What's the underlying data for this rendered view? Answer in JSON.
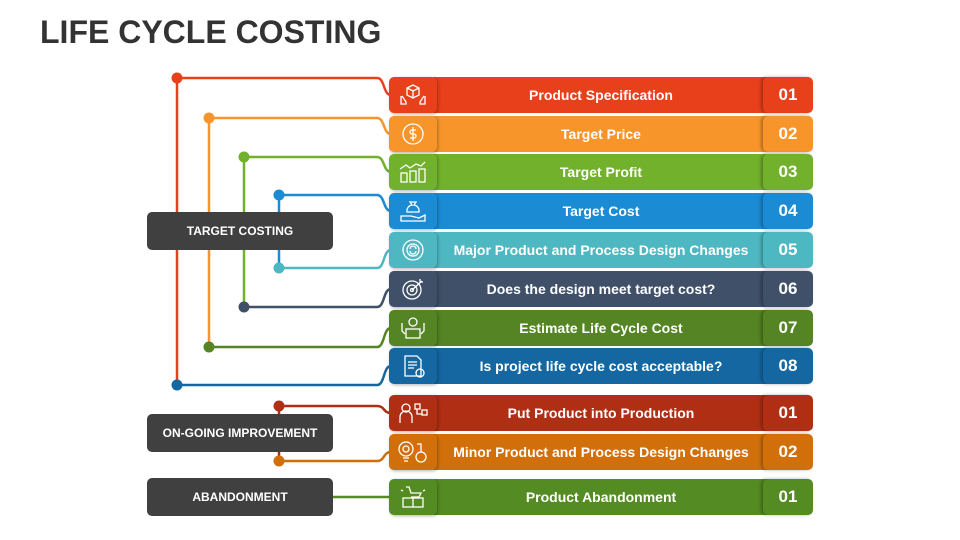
{
  "title": "LIFE CYCLE COSTING",
  "groups": [
    {
      "label": "TARGET COSTING"
    },
    {
      "label": "ON-GOING IMPROVEMENT"
    },
    {
      "label": "ABANDONMENT"
    }
  ],
  "rows": [
    {
      "label": "Product Specification",
      "num": "01",
      "color": "#E8401A",
      "icon": "box-in-hands-icon"
    },
    {
      "label": "Target Price",
      "num": "02",
      "color": "#F7952A",
      "icon": "dollar-coin-icon"
    },
    {
      "label": "Target Profit",
      "num": "03",
      "color": "#72B12B",
      "icon": "bar-chart-growth-icon"
    },
    {
      "label": "Target Cost",
      "num": "04",
      "color": "#1B8BD4",
      "icon": "money-bag-hand-icon"
    },
    {
      "label": "Major Product and Process Design Changes",
      "num": "05",
      "color": "#4EB8C2",
      "icon": "gear-refresh-icon"
    },
    {
      "label": "Does the design meet target cost?",
      "num": "06",
      "color": "#3F5068",
      "icon": "target-arrow-icon"
    },
    {
      "label": "Estimate Life Cycle Cost",
      "num": "07",
      "color": "#548423",
      "icon": "product-cycle-icon"
    },
    {
      "label": "Is project life cycle cost acceptable?",
      "num": "08",
      "color": "#1467A0",
      "icon": "document-check-icon"
    },
    {
      "label": "Put Product into Production",
      "num": "01",
      "color": "#B02E14",
      "icon": "worker-workflow-icon"
    },
    {
      "label": "Minor Product and Process Design Changes",
      "num": "02",
      "color": "#D1700A",
      "icon": "idea-target-icon"
    },
    {
      "label": "Product Abandonment",
      "num": "01",
      "color": "#548B22",
      "icon": "cart-box-icon"
    }
  ]
}
